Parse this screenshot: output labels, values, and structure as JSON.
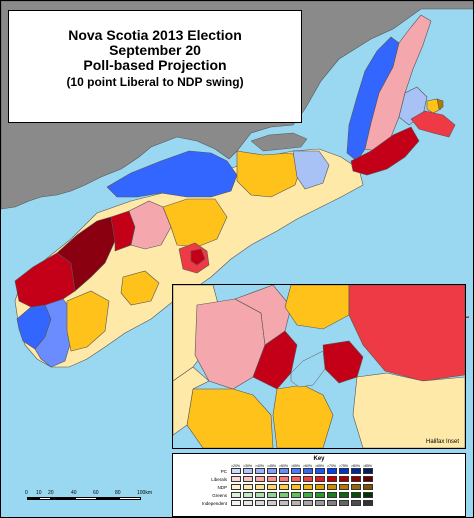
{
  "title": {
    "line1": "Nova Scotia 2013 Election",
    "line2": "September 20",
    "line3": "Poll-based Projection",
    "line4": "(10 point Liberal to NDP swing)"
  },
  "inset": {
    "label": "Halifax Inset"
  },
  "legend": {
    "title": "Key",
    "percent_labels": [
      ">20%",
      ">30%",
      ">40%",
      ">45%",
      ">50%",
      ">55%",
      ">60%",
      ">65%",
      ">70%",
      ">75%",
      ">80%",
      ">85%"
    ],
    "rows": [
      {
        "party": "PC",
        "colors": [
          "#ccd9ff",
          "#b3c6ff",
          "#99b3ff",
          "#809fff",
          "#668cff",
          "#4d79ff",
          "#3366ff",
          "#1a53ff",
          "#0040ff",
          "#0033cc",
          "#002699",
          "#001a66"
        ]
      },
      {
        "party": "Liberals",
        "colors": [
          "#ffd9d9",
          "#ffc2c2",
          "#ffa8a8",
          "#ff8f8f",
          "#ff7575",
          "#ff5c5c",
          "#f04040",
          "#e02020",
          "#c80000",
          "#a80000",
          "#880000",
          "#660000"
        ]
      },
      {
        "party": "NDP",
        "colors": [
          "#fff2cc",
          "#ffe9a8",
          "#ffe08a",
          "#ffd666",
          "#ffcc44",
          "#ffc21a",
          "#f5b400",
          "#e0a000",
          "#cc8e00",
          "#b37a00",
          "#996600",
          "#805200"
        ]
      },
      {
        "party": "Greens",
        "colors": [
          "#d9f2d9",
          "#c2ebc2",
          "#a8e0a8",
          "#8fd68f",
          "#75cc75",
          "#5cc25c",
          "#40b040",
          "#2a9a2a",
          "#1a801a",
          "#106610",
          "#084d08",
          "#033303"
        ]
      },
      {
        "party": "Independent",
        "colors": [
          "#f2f2f2",
          "#e6e6e6",
          "#d9d9d9",
          "#cccccc",
          "#bfbfbf",
          "#b3b3b3",
          "#a6a6a6",
          "#999999",
          "#808080",
          "#666666",
          "#4d4d4d",
          "#333333"
        ]
      }
    ]
  },
  "scale_bar": {
    "labels": [
      "0",
      "10",
      "20",
      "40",
      "60",
      "80",
      "100km"
    ]
  },
  "colors": {
    "water": "#9ad7f0",
    "land_outside": "#8a8a8a",
    "pc_strong": "#3366ff",
    "pc_light": "#a9c2f5",
    "liberal_dark": "#8b0010",
    "liberal": "#c40018",
    "liberal_mid": "#ee3a44",
    "liberal_light": "#f4a7ad",
    "ndp_strong": "#ffc21a",
    "ndp_light": "#ffe9a8"
  }
}
